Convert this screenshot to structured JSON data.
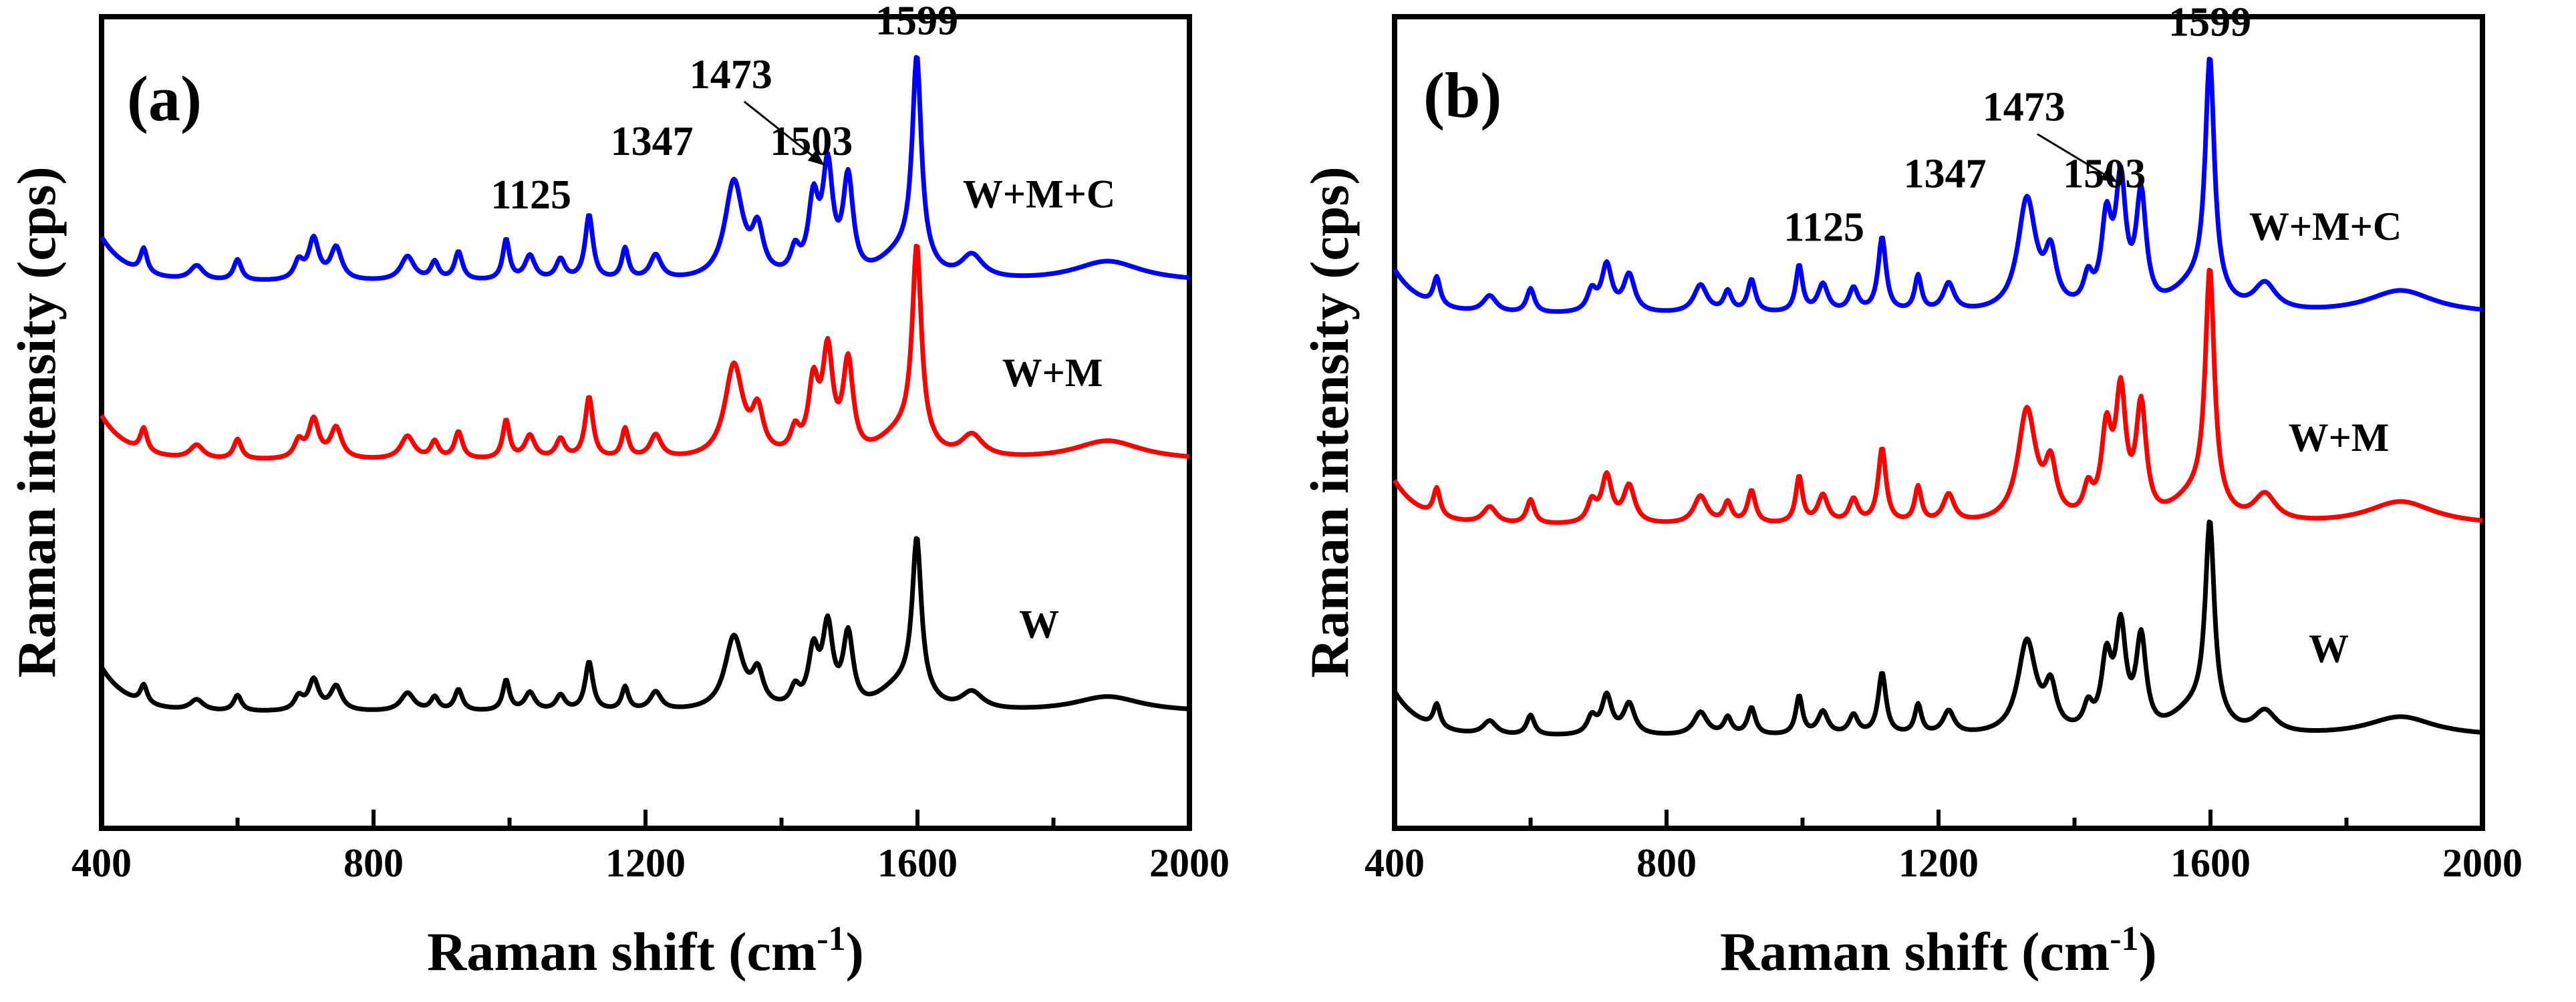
{
  "colors": {
    "W": "#000000",
    "W+M": "#ff0000",
    "W+M+C": "#0000ff"
  },
  "chart_data": [
    {
      "type": "line",
      "panel_label": "(a)",
      "xlabel_main": "Raman shift (cm",
      "xlabel_sup": "-1",
      "xlabel_close": ")",
      "ylabel": "Raman intensity (cps)",
      "xlim": [
        400,
        2000
      ],
      "ylim": [
        0,
        100
      ],
      "xticks": [
        400,
        800,
        1200,
        1600,
        2000
      ],
      "series": [
        {
          "name": "W+M+C",
          "label": "W+M+C",
          "offset": 66.5,
          "peak_scale": 1.0
        },
        {
          "name": "W+M",
          "label": "W+M",
          "offset": 44.5,
          "peak_scale": 0.95
        },
        {
          "name": "W",
          "label": "W",
          "offset": 13.5,
          "peak_scale": 0.75
        }
      ],
      "peak_annotations": [
        {
          "x": 1125,
          "label": "1125"
        },
        {
          "x": 1347,
          "label": "1347"
        },
        {
          "x": 1473,
          "label": "1473"
        },
        {
          "x": 1503,
          "label": "1503"
        },
        {
          "x": 1599,
          "label": "1599"
        }
      ]
    },
    {
      "type": "line",
      "panel_label": "(b)",
      "xlabel_main": "Raman shift (cm",
      "xlabel_sup": "-1",
      "xlabel_close": ")",
      "ylabel": "Raman intensity (cps)",
      "xlim": [
        400,
        2000
      ],
      "ylim": [
        0,
        100
      ],
      "xticks": [
        400,
        800,
        1200,
        1600,
        2000
      ],
      "series": [
        {
          "name": "W+M+C",
          "label": "W+M+C",
          "offset": 62.5,
          "peak_scale": 1.15
        },
        {
          "name": "W+M",
          "label": "W+M",
          "offset": 36.5,
          "peak_scale": 1.15
        },
        {
          "name": "W",
          "label": "W",
          "offset": 10.5,
          "peak_scale": 0.95
        }
      ],
      "peak_annotations": [
        {
          "x": 1125,
          "label": "1125"
        },
        {
          "x": 1347,
          "label": "1347"
        },
        {
          "x": 1473,
          "label": "1473"
        },
        {
          "x": 1503,
          "label": "1503"
        },
        {
          "x": 1599,
          "label": "1599"
        }
      ]
    }
  ],
  "spectrum_peaks": [
    {
      "x": 462,
      "height": 3.0,
      "width": 6
    },
    {
      "x": 540,
      "height": 1.8,
      "width": 12
    },
    {
      "x": 600,
      "height": 2.6,
      "width": 7
    },
    {
      "x": 690,
      "height": 2.2,
      "width": 8
    },
    {
      "x": 712,
      "height": 5.0,
      "width": 9
    },
    {
      "x": 745,
      "height": 4.0,
      "width": 10
    },
    {
      "x": 850,
      "height": 3.0,
      "width": 12
    },
    {
      "x": 890,
      "height": 2.2,
      "width": 7
    },
    {
      "x": 925,
      "height": 3.5,
      "width": 7
    },
    {
      "x": 995,
      "height": 5.0,
      "width": 6
    },
    {
      "x": 1030,
      "height": 3.0,
      "width": 9
    },
    {
      "x": 1075,
      "height": 2.5,
      "width": 8
    },
    {
      "x": 1117,
      "height": 8.0,
      "width": 7
    },
    {
      "x": 1170,
      "height": 3.8,
      "width": 6
    },
    {
      "x": 1215,
      "height": 3.0,
      "width": 10
    },
    {
      "x": 1330,
      "height": 12.0,
      "width": 16
    },
    {
      "x": 1365,
      "height": 5.5,
      "width": 10
    },
    {
      "x": 1420,
      "height": 3.0,
      "width": 8
    },
    {
      "x": 1447,
      "height": 9.0,
      "width": 9
    },
    {
      "x": 1468,
      "height": 13.0,
      "width": 9
    },
    {
      "x": 1498,
      "height": 12.0,
      "width": 9
    },
    {
      "x": 1599,
      "height": 25.0,
      "width": 8
    },
    {
      "x": 1680,
      "height": 3.0,
      "width": 20
    },
    {
      "x": 1880,
      "height": 2.5,
      "width": 60
    }
  ]
}
